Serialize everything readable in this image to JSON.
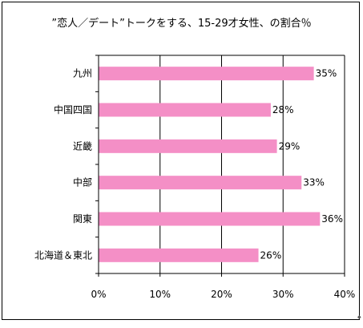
{
  "chart_data": {
    "type": "bar",
    "orientation": "horizontal",
    "title": "”恋人／デート”トークをする、15-29才女性、の割合％",
    "categories": [
      "九州",
      "中国四国",
      "近畿",
      "中部",
      "関東",
      "北海道＆東北"
    ],
    "values": [
      35,
      28,
      29,
      33,
      36,
      26
    ],
    "data_labels": [
      "35%",
      "28%",
      "29%",
      "33%",
      "36%",
      "26%"
    ],
    "x_ticks": [
      "0%",
      "10%",
      "20%",
      "30%",
      "40%"
    ],
    "xlim": [
      0,
      40
    ],
    "xlabel": "",
    "ylabel": "",
    "grid": "vertical",
    "legend": "none",
    "bar_color": "#f48fc6"
  }
}
